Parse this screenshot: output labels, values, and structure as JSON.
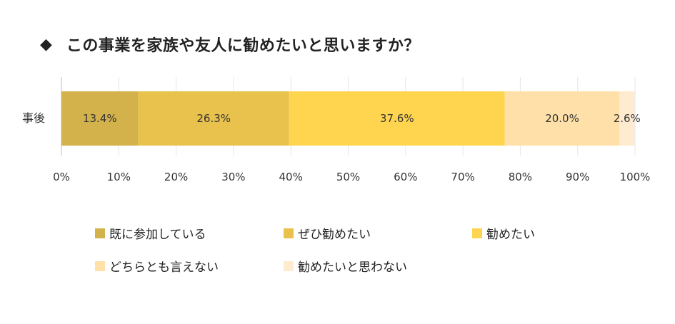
{
  "title": {
    "marker": "◆",
    "text": "この事業を家族や友人に勧めたいと思いますか？"
  },
  "chart_data": {
    "type": "bar",
    "orientation": "horizontal",
    "stacked": true,
    "categories": [
      "事後"
    ],
    "series": [
      {
        "name": "既に参加している",
        "values": [
          13.4
        ],
        "label": "13.4%",
        "color": "#D4B24B"
      },
      {
        "name": "ぜひ勧めたい",
        "values": [
          26.3
        ],
        "label": "26.3%",
        "color": "#E9C24D"
      },
      {
        "name": "勧めたい",
        "values": [
          37.6
        ],
        "label": "37.6%",
        "color": "#FFD54F"
      },
      {
        "name": "どちらとも言えない",
        "values": [
          20.0
        ],
        "label": "20.0%",
        "color": "#FFE0A8"
      },
      {
        "name": "勧めたいと思わない",
        "values": [
          2.6
        ],
        "label": "2.6%",
        "color": "#FFEBCF"
      }
    ],
    "xlim": [
      0,
      100
    ],
    "xticks": [
      "0%",
      "10%",
      "20%",
      "30%",
      "40%",
      "50%",
      "60%",
      "70%",
      "80%",
      "90%",
      "100%"
    ],
    "grid": true,
    "legend_position": "bottom"
  }
}
